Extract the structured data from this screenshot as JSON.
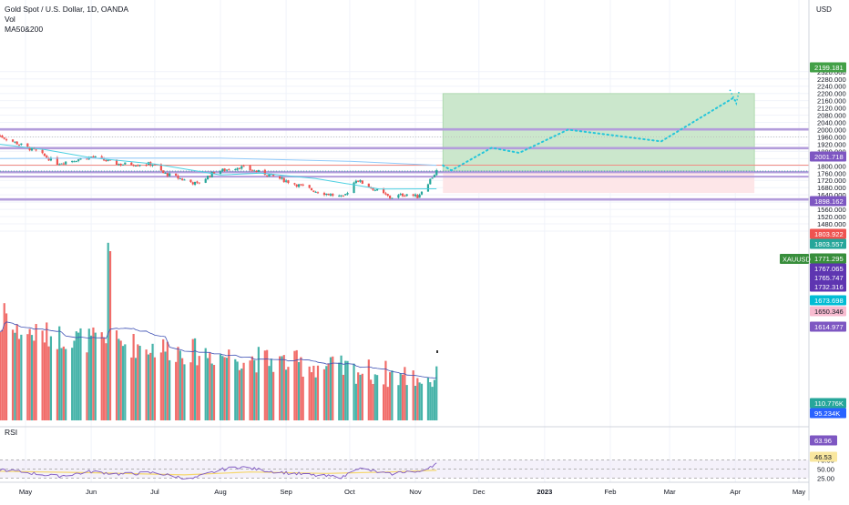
{
  "header": {
    "symbol_line": "Gold Spot / U.S. Dollar, 1D, OANDA",
    "indicator_vol": "Vol",
    "indicator_ma": "MA50&200"
  },
  "axis": {
    "currency": "USD",
    "price_ticks": [
      "2320.000",
      "2280.000",
      "2240.000",
      "2200.000",
      "2160.000",
      "2120.000",
      "2080.000",
      "2040.000",
      "2000.000",
      "1960.000",
      "1920.000",
      "1880.000",
      "1840.000",
      "1800.000",
      "1760.000",
      "1720.000",
      "1680.000",
      "1640.000",
      "1600.000",
      "1560.000",
      "1520.000",
      "1480.000",
      "1440.000"
    ],
    "x_ticks": [
      "May",
      "Jun",
      "Jul",
      "Aug",
      "Sep",
      "Oct",
      "Nov",
      "Dec",
      "2023",
      "Feb",
      "Mar",
      "Apr",
      "May"
    ],
    "rsi_ticks": [
      "75.00",
      "50.00",
      "25.00"
    ]
  },
  "labels": {
    "ticker": "XAUUSD",
    "rsi_title": "RSI",
    "price_badges": [
      {
        "text": "2199.181",
        "kind": "green"
      },
      {
        "text": "2001.718",
        "kind": "purple"
      },
      {
        "text": "1898.162",
        "kind": "purple"
      },
      {
        "text": "1803.922",
        "kind": "red"
      },
      {
        "text": "1803.557",
        "kind": "teal"
      },
      {
        "text": "1771.295",
        "kind": "green"
      },
      {
        "text": "1767.065",
        "kind": "purple"
      },
      {
        "text": "1765.747",
        "kind": "purple"
      },
      {
        "text": "1732.316",
        "kind": "purple"
      },
      {
        "text": "1673.698",
        "kind": "cyan"
      },
      {
        "text": "1650.346",
        "kind": "pink"
      },
      {
        "text": "1614.977",
        "kind": "purple"
      },
      {
        "text": "110.776K",
        "kind": "teal"
      },
      {
        "text": "95.234K",
        "kind": "blue"
      }
    ],
    "rsi_badges": [
      {
        "text": "63.96",
        "kind": "purple"
      },
      {
        "text": "46.53",
        "kind": "yellow"
      }
    ]
  },
  "colors": {
    "up": "#26a69a",
    "down": "#ef5350",
    "ma50": "#4dd0e1",
    "ma200": "#90caf9",
    "level": "#b39ddb",
    "projection": "#26c6da",
    "profit": "#c8e6c9",
    "loss": "#fde6e8",
    "rsi_line": "#7e57c2",
    "rsi_ma": "#f5d76e"
  },
  "chart_data": {
    "type": "candlestick",
    "ylim": [
      1440,
      2330
    ],
    "levels": [
      2001.718,
      1898.162,
      1765.747,
      1614.977
    ],
    "resistance_line": 1803.922,
    "last_price": 1771.295,
    "position": {
      "entry": 1771.295,
      "target": 2199.181,
      "stop": 1650.346
    },
    "projection_path": [
      {
        "date": "2022-11-14",
        "value": 1803
      },
      {
        "date": "2022-11-18",
        "value": 1775
      },
      {
        "date": "2022-12-07",
        "value": 1900
      },
      {
        "date": "2022-12-20",
        "value": 1872
      },
      {
        "date": "2023-01-12",
        "value": 2000
      },
      {
        "date": "2023-02-25",
        "value": 1935
      },
      {
        "date": "2023-03-31",
        "value": 2175
      },
      {
        "date": "2023-04-01",
        "value": 2160
      }
    ],
    "close_path": [
      {
        "date": "2022-04-18",
        "value": 1970
      },
      {
        "date": "2022-05-06",
        "value": 1880
      },
      {
        "date": "2022-05-16",
        "value": 1815
      },
      {
        "date": "2022-06-01",
        "value": 1850
      },
      {
        "date": "2022-06-14",
        "value": 1810
      },
      {
        "date": "2022-06-30",
        "value": 1810
      },
      {
        "date": "2022-07-05",
        "value": 1760
      },
      {
        "date": "2022-07-21",
        "value": 1700
      },
      {
        "date": "2022-07-29",
        "value": 1765
      },
      {
        "date": "2022-08-10",
        "value": 1795
      },
      {
        "date": "2022-08-24",
        "value": 1750
      },
      {
        "date": "2022-09-15",
        "value": 1660
      },
      {
        "date": "2022-09-28",
        "value": 1625
      },
      {
        "date": "2022-10-04",
        "value": 1725
      },
      {
        "date": "2022-10-20",
        "value": 1625
      },
      {
        "date": "2022-10-28",
        "value": 1645
      },
      {
        "date": "2022-11-02",
        "value": 1630
      },
      {
        "date": "2022-11-11",
        "value": 1771.295
      }
    ],
    "ma50_path": [
      {
        "date": "2022-04-18",
        "value": 1920
      },
      {
        "date": "2022-05-10",
        "value": 1890
      },
      {
        "date": "2022-06-01",
        "value": 1845
      },
      {
        "date": "2022-07-01",
        "value": 1810
      },
      {
        "date": "2022-08-01",
        "value": 1750
      },
      {
        "date": "2022-08-20",
        "value": 1760
      },
      {
        "date": "2022-09-15",
        "value": 1730
      },
      {
        "date": "2022-10-15",
        "value": 1672
      },
      {
        "date": "2022-11-11",
        "value": 1673.698
      }
    ],
    "ma200_path": [
      {
        "date": "2022-04-18",
        "value": 1840
      },
      {
        "date": "2022-06-01",
        "value": 1843
      },
      {
        "date": "2022-08-01",
        "value": 1843
      },
      {
        "date": "2022-10-01",
        "value": 1825
      },
      {
        "date": "2022-11-11",
        "value": 1803.557
      }
    ],
    "rsi": {
      "ylim": [
        15,
        85
      ],
      "levels": [
        75,
        50,
        25
      ],
      "last": 63.96,
      "ma_last": 46.53,
      "rsi_path": [
        {
          "date": "2022-04-18",
          "value": 50
        },
        {
          "date": "2022-05-05",
          "value": 38
        },
        {
          "date": "2022-05-16",
          "value": 30
        },
        {
          "date": "2022-06-01",
          "value": 43
        },
        {
          "date": "2022-06-15",
          "value": 36
        },
        {
          "date": "2022-07-01",
          "value": 40
        },
        {
          "date": "2022-07-18",
          "value": 22
        },
        {
          "date": "2022-08-01",
          "value": 48
        },
        {
          "date": "2022-08-10",
          "value": 56
        },
        {
          "date": "2022-08-25",
          "value": 44
        },
        {
          "date": "2022-09-15",
          "value": 32
        },
        {
          "date": "2022-09-28",
          "value": 28
        },
        {
          "date": "2022-10-04",
          "value": 53
        },
        {
          "date": "2022-10-20",
          "value": 36
        },
        {
          "date": "2022-10-28",
          "value": 44
        },
        {
          "date": "2022-11-02",
          "value": 40
        },
        {
          "date": "2022-11-08",
          "value": 58
        },
        {
          "date": "2022-11-11",
          "value": 63.96
        }
      ],
      "ma_path": [
        {
          "date": "2022-04-18",
          "value": 44
        },
        {
          "date": "2022-06-01",
          "value": 40
        },
        {
          "date": "2022-07-15",
          "value": 34
        },
        {
          "date": "2022-08-15",
          "value": 42
        },
        {
          "date": "2022-09-20",
          "value": 38
        },
        {
          "date": "2022-10-20",
          "value": 42
        },
        {
          "date": "2022-11-11",
          "value": 46.53
        }
      ]
    },
    "volume": {
      "ylim": [
        0,
        260
      ],
      "last": 110.776,
      "ma_last": 95.234
    }
  }
}
